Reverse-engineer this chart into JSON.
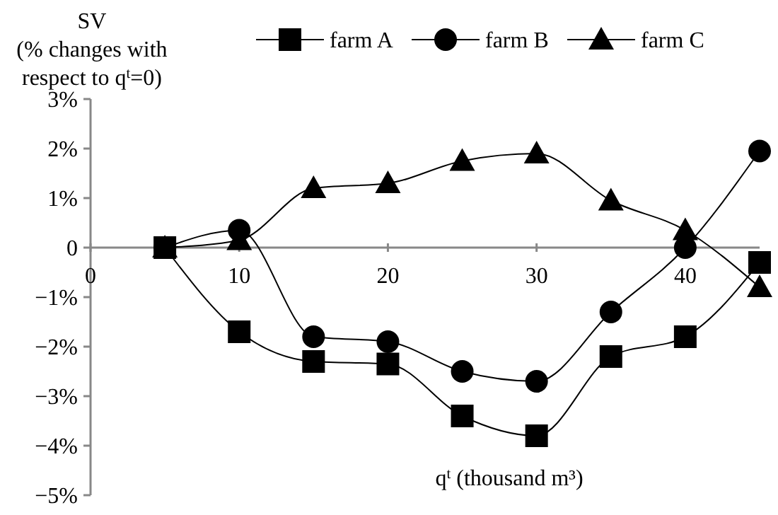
{
  "chart_data": {
    "type": "line",
    "xlabel": "q$^{t}$ (thousand m³)",
    "ylabel": "SV\n(% changes with\nrespect to q$^{t}$=0)",
    "x": [
      5,
      10,
      15,
      20,
      25,
      30,
      35,
      40,
      45
    ],
    "xlim": [
      0,
      45
    ],
    "xticks": [
      0,
      10,
      20,
      30,
      40
    ],
    "ylim": [
      -5,
      3
    ],
    "yticks": [
      {
        "value": 3,
        "label": "3%"
      },
      {
        "value": 2,
        "label": "2%"
      },
      {
        "value": 1,
        "label": "1%"
      },
      {
        "value": 0,
        "label": "0"
      },
      {
        "value": -1,
        "label": "−1%"
      },
      {
        "value": -2,
        "label": "−2%"
      },
      {
        "value": -3,
        "label": "−3%"
      },
      {
        "value": -4,
        "label": "−4%"
      },
      {
        "value": -5,
        "label": "−5%"
      }
    ],
    "legend": "top",
    "line_style": "solid",
    "series": [
      {
        "name": "farm A",
        "color": "#000000",
        "marker": "square",
        "values": [
          0,
          -1.7,
          -2.3,
          -2.35,
          -3.4,
          -3.8,
          -2.2,
          -1.8,
          -0.3
        ]
      },
      {
        "name": "farm B",
        "color": "#000000",
        "marker": "circle",
        "values": [
          0,
          0.35,
          -1.8,
          -1.9,
          -2.5,
          -2.7,
          -1.3,
          0,
          1.95
        ]
      },
      {
        "name": "farm C",
        "color": "#000000",
        "marker": "triangle",
        "values": [
          0,
          0.15,
          1.2,
          1.3,
          1.75,
          1.9,
          0.95,
          0.35,
          -0.8
        ]
      }
    ]
  }
}
